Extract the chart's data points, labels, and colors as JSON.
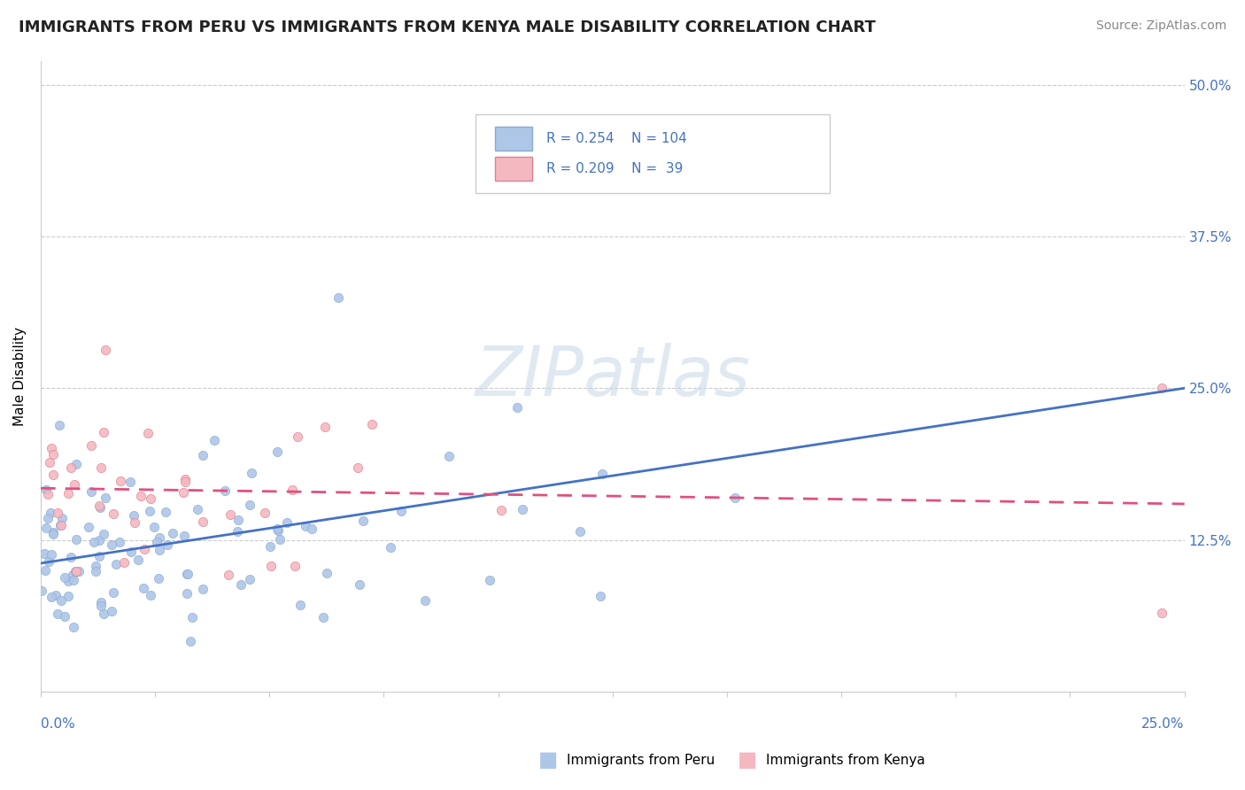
{
  "title": "IMMIGRANTS FROM PERU VS IMMIGRANTS FROM KENYA MALE DISABILITY CORRELATION CHART",
  "source": "Source: ZipAtlas.com",
  "ylabel": "Male Disability",
  "ytick_values": [
    0.125,
    0.25,
    0.375,
    0.5
  ],
  "ytick_labels": [
    "12.5%",
    "25.0%",
    "37.5%",
    "50.0%"
  ],
  "xlim": [
    0.0,
    0.25
  ],
  "ylim": [
    0.0,
    0.52
  ],
  "legend_r_peru": "0.254",
  "legend_n_peru": "104",
  "legend_r_kenya": "0.209",
  "legend_n_kenya": " 39",
  "watermark": "ZIPatlas",
  "peru_color": "#aec6e8",
  "peru_edge_color": "#8aabcf",
  "kenya_color": "#f4b8c1",
  "kenya_edge_color": "#e08090",
  "peru_line_color": "#4472c4",
  "kenya_line_color": "#e05080",
  "dashed_line_color": "#aaaaaa",
  "axis_label_color": "#4472c4",
  "title_color": "#222222",
  "source_color": "#888888",
  "watermark_color": "#c8d8e8",
  "grid_color": "#cccccc",
  "legend_border_color": "#cccccc"
}
